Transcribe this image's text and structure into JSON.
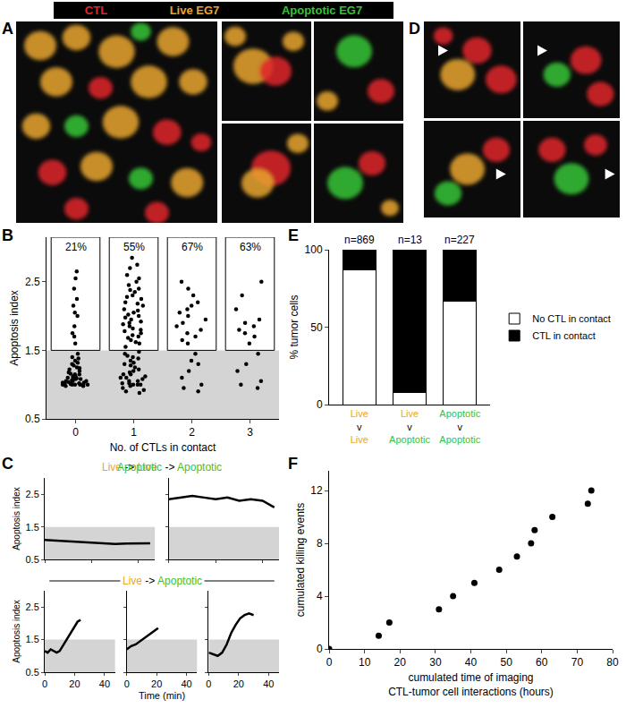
{
  "color_key": [
    {
      "text": "CTL",
      "color": "#e0262b"
    },
    {
      "text": "Live EG7",
      "color": "#e8a530"
    },
    {
      "text": "Apoptotic EG7",
      "color": "#35c435"
    }
  ],
  "image_panels": [
    {
      "letter": "A"
    },
    {
      "letter": "D"
    }
  ],
  "state_colors": {
    "Live": "#e8a530",
    "Apoptotic": "#35c435"
  },
  "chart_data": [
    {
      "panel": "B",
      "type": "scatter",
      "marker": "dot",
      "color": "#000000",
      "grid": false,
      "xlabel": "No. of CTLs in contact",
      "ylabel": "Apoptosis index",
      "x": [
        0,
        1,
        2,
        3
      ],
      "values": [
        [
          2.65,
          2.55,
          2.4,
          2.25,
          2.15,
          2.05,
          2.0,
          1.85,
          1.75,
          1.7,
          1.6,
          1.45,
          1.4,
          1.38,
          1.35,
          1.3,
          1.28,
          1.25,
          1.22,
          1.2,
          1.18,
          1.15,
          1.15,
          1.12,
          1.1,
          1.1,
          1.08,
          1.08,
          1.05,
          1.05,
          1.05,
          1.03,
          1.03,
          1.02,
          1.02,
          1.0,
          1.0,
          1.0,
          1.0,
          1.0,
          0.98,
          0.98,
          1.0,
          1.01,
          1.02,
          1.04,
          1.06,
          1.09,
          1.12,
          1.16,
          1.24,
          1.32
        ],
        [
          2.85,
          2.75,
          2.7,
          2.6,
          2.55,
          2.5,
          2.45,
          2.4,
          2.38,
          2.35,
          2.3,
          2.28,
          2.25,
          2.2,
          2.18,
          2.15,
          2.1,
          2.08,
          2.05,
          2.02,
          2.0,
          1.98,
          1.95,
          1.92,
          1.9,
          1.88,
          1.85,
          1.82,
          1.8,
          1.78,
          1.75,
          1.72,
          1.7,
          1.68,
          1.65,
          1.62,
          1.6,
          1.55,
          1.48,
          1.45,
          1.42,
          1.4,
          1.38,
          1.35,
          1.32,
          1.3,
          1.28,
          1.25,
          1.22,
          1.2,
          1.18,
          1.15,
          1.12,
          1.1,
          1.1,
          1.08,
          1.05,
          1.05,
          1.02,
          1.02,
          1.0,
          1.0,
          0.98,
          0.95,
          0.92,
          0.9,
          0.88,
          1.0,
          1.15
        ],
        [
          2.5,
          2.4,
          2.3,
          2.2,
          2.15,
          2.1,
          2.05,
          2.0,
          1.95,
          1.9,
          1.85,
          1.8,
          1.75,
          1.7,
          1.65,
          1.6,
          1.45,
          1.35,
          1.3,
          1.2,
          1.1,
          1.0,
          0.95,
          0.9
        ],
        [
          2.5,
          2.3,
          2.1,
          1.95,
          1.9,
          1.85,
          1.8,
          1.75,
          1.7,
          1.6,
          1.45,
          1.3,
          1.2,
          1.05,
          1.0,
          0.95
        ]
      ],
      "threshold": {
        "value": 1.5,
        "color": "#d4d4d4"
      },
      "apoptotic_labels": [
        "21%",
        "55%",
        "67%",
        "63%"
      ],
      "xlim": [
        -0.5,
        3.5
      ],
      "xticks": [
        0,
        1,
        2,
        3
      ],
      "ylim": [
        0.5,
        3.15
      ],
      "yticks": [
        0.5,
        1.5,
        2.5
      ]
    },
    {
      "panel": "C",
      "type": "line",
      "line_style": "solid",
      "color": "#000000",
      "grid": false,
      "xlabel": "Time (min)",
      "ylabel": "Apoptosis index",
      "threshold": {
        "value": 1.5,
        "color": "#d4d4d4"
      },
      "xlim": [
        0,
        47
      ],
      "xticks": [
        0,
        20,
        40
      ],
      "ylim": [
        0.5,
        3.0
      ],
      "yticks": [
        0.5,
        1.5,
        2.5
      ],
      "panels": [
        {
          "title": "Live -> Live",
          "tick_labels": "y",
          "x": [
            0,
            5,
            10,
            15,
            20,
            25,
            30,
            35,
            40,
            45
          ],
          "values": [
            1.1,
            1.08,
            1.05,
            1.02,
            1.0,
            1.0,
            0.98,
            0.99,
            1.0,
            1.0
          ]
        },
        {
          "title": "Apoptotic -> Apoptotic",
          "tick_labels": false,
          "x": [
            0,
            5,
            10,
            15,
            20,
            25,
            30,
            35,
            40,
            45
          ],
          "values": [
            2.35,
            2.4,
            2.45,
            2.4,
            2.35,
            2.4,
            2.3,
            2.35,
            2.3,
            2.1
          ]
        }
      ],
      "group": {
        "title": "Live -> Apoptotic",
        "panels": [
          {
            "tick_labels": true,
            "x": [
              0,
              2,
              4,
              6,
              8,
              10,
              12,
              14,
              16,
              18,
              20,
              22,
              24
            ],
            "values": [
              1.15,
              1.1,
              1.2,
              1.15,
              1.1,
              1.15,
              1.3,
              1.45,
              1.6,
              1.75,
              1.9,
              2.05,
              2.1
            ]
          },
          {
            "tick_labels": "x",
            "x": [
              0,
              3,
              6,
              9,
              12,
              15,
              18,
              21
            ],
            "values": [
              1.2,
              1.3,
              1.35,
              1.45,
              1.55,
              1.65,
              1.75,
              1.85
            ]
          },
          {
            "tick_labels": "x",
            "x": [
              0,
              3,
              6,
              9,
              12,
              15,
              18,
              21,
              24,
              27,
              30
            ],
            "values": [
              1.1,
              1.05,
              1.0,
              1.1,
              1.35,
              1.7,
              1.95,
              2.15,
              2.25,
              2.3,
              2.25
            ]
          }
        ]
      }
    },
    {
      "panel": "E",
      "type": "bar",
      "stacked": true,
      "grid": false,
      "legend": "right",
      "ylabel": "% tumor cells",
      "categories": [
        "Live v Live",
        "Live v Apoptotic",
        "Apoptotic v Apoptotic"
      ],
      "annotations": [
        "n=869",
        "n=13",
        "n=227"
      ],
      "series": [
        {
          "name": "No CTL in contact",
          "color": "#ffffff",
          "values": [
            87,
            8,
            67
          ]
        },
        {
          "name": "CTL in contact",
          "color": "#000000",
          "values": [
            13,
            92,
            33
          ]
        }
      ],
      "ylim": [
        0,
        100
      ],
      "yticks": [
        0,
        50,
        100
      ]
    },
    {
      "panel": "F",
      "type": "scatter",
      "marker": "dot",
      "color": "#000000",
      "grid": false,
      "xlabel": [
        "cumulated time of imaging",
        "CTL-tumor cell interactions (hours)"
      ],
      "ylabel": "cumulated killing events",
      "x": [
        0,
        14,
        17,
        31,
        35,
        41,
        48,
        53,
        57,
        58,
        63,
        73,
        74
      ],
      "values": [
        0,
        1,
        2,
        3,
        4,
        5,
        6,
        7,
        8,
        9,
        10,
        11,
        12
      ],
      "xlim": [
        0,
        80
      ],
      "xticks": [
        0,
        10,
        20,
        30,
        40,
        50,
        60,
        70,
        80
      ],
      "ylim": [
        0,
        13.5
      ],
      "yticks": [
        0,
        4,
        8,
        12
      ]
    }
  ]
}
